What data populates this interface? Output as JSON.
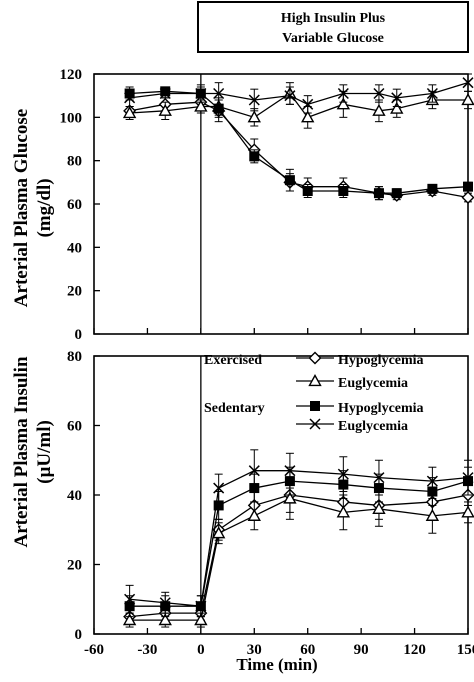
{
  "figure": {
    "header_lines": [
      "High Insulin Plus",
      "Variable Glucose"
    ],
    "xlabel": "Time (min)"
  },
  "legend": {
    "groups": [
      {
        "label": "Exercised",
        "entries": [
          {
            "label": "Hypoglycemia",
            "marker": "diamond-open"
          },
          {
            "label": "Euglycemia",
            "marker": "triangle-open"
          }
        ]
      },
      {
        "label": "Sedentary",
        "entries": [
          {
            "label": "Hypoglycemia",
            "marker": "square-filled"
          },
          {
            "label": "Euglycemia",
            "marker": "x-cross"
          }
        ]
      }
    ]
  },
  "chart_data": [
    {
      "type": "line",
      "ylabel": "Arterial Plasma Glucose (mg/dl)",
      "ylabel_lines": [
        "Arterial Plasma Glucose",
        "(mg/dl)"
      ],
      "xlim": [
        -60,
        150
      ],
      "ylim": [
        0,
        120
      ],
      "xticks": [
        -60,
        -30,
        0,
        30,
        60,
        90,
        120,
        150
      ],
      "yticks": [
        0,
        20,
        40,
        60,
        80,
        100,
        120
      ],
      "x": [
        -40,
        -20,
        0,
        10,
        30,
        50,
        60,
        80,
        100,
        110,
        130,
        150
      ],
      "series": [
        {
          "name": "Exercised Hypoglycemia",
          "marker": "diamond-open",
          "values": [
            103,
            106,
            107,
            103,
            85,
            70,
            68,
            68,
            65,
            64,
            66,
            63
          ],
          "errors": [
            2,
            3,
            3,
            5,
            5,
            4,
            4,
            4,
            3,
            2,
            2,
            2
          ]
        },
        {
          "name": "Exercised Euglycemia",
          "marker": "triangle-open",
          "values": [
            102,
            103,
            105,
            105,
            100,
            111,
            100,
            106,
            103,
            104,
            108,
            108
          ],
          "errors": [
            3,
            4,
            3,
            4,
            4,
            5,
            5,
            6,
            5,
            4,
            4,
            4
          ]
        },
        {
          "name": "Sedentary Hypoglycemia",
          "marker": "square-filled",
          "values": [
            111,
            112,
            111,
            104,
            82,
            71,
            66,
            66,
            65,
            65,
            67,
            68
          ],
          "errors": [
            3,
            2,
            3,
            4,
            3,
            5,
            3,
            3,
            3,
            2,
            2,
            2
          ]
        },
        {
          "name": "Sedentary Euglycemia",
          "marker": "x-cross",
          "values": [
            109,
            111,
            111,
            111,
            108,
            110,
            106,
            111,
            111,
            109,
            111,
            116
          ],
          "errors": [
            4,
            2,
            4,
            5,
            5,
            4,
            4,
            4,
            4,
            4,
            4,
            4
          ]
        }
      ]
    },
    {
      "type": "line",
      "ylabel": "Arterial Plasma Insulin (µU/ml)",
      "ylabel_lines": [
        "Arterial Plasma Insulin",
        "(µU/ml)"
      ],
      "xlim": [
        -60,
        150
      ],
      "ylim": [
        0,
        80
      ],
      "xticks": [
        -60,
        -30,
        0,
        30,
        60,
        90,
        120,
        150
      ],
      "xtick_labels": [
        "-60",
        "-30",
        "0",
        "30",
        "60",
        "90",
        "120",
        "150"
      ],
      "yticks": [
        0,
        20,
        40,
        60,
        80
      ],
      "x": [
        -40,
        -20,
        0,
        10,
        30,
        50,
        80,
        100,
        130,
        150
      ],
      "series": [
        {
          "name": "Exercised Hypoglycemia",
          "marker": "diamond-open",
          "values": [
            5,
            6,
            6,
            30,
            37,
            40,
            38,
            37,
            38,
            40
          ],
          "errors": [
            2,
            2,
            2,
            3,
            4,
            5,
            4,
            4,
            4,
            3
          ]
        },
        {
          "name": "Exercised Euglycemia",
          "marker": "triangle-open",
          "values": [
            4,
            4,
            4,
            29,
            34,
            39,
            35,
            36,
            34,
            35
          ],
          "errors": [
            2,
            2,
            2,
            3,
            4,
            6,
            5,
            5,
            5,
            3
          ]
        },
        {
          "name": "Sedentary Hypoglycemia",
          "marker": "square-filled",
          "values": [
            8,
            8,
            8,
            37,
            42,
            44,
            43,
            42,
            41,
            44
          ],
          "errors": [
            3,
            3,
            3,
            4,
            4,
            4,
            4,
            4,
            4,
            4
          ]
        },
        {
          "name": "Sedentary Euglycemia",
          "marker": "x-cross",
          "values": [
            10,
            9,
            8,
            42,
            47,
            47,
            46,
            45,
            44,
            45
          ],
          "errors": [
            4,
            3,
            3,
            4,
            6,
            5,
            5,
            5,
            4,
            5
          ]
        }
      ]
    }
  ]
}
